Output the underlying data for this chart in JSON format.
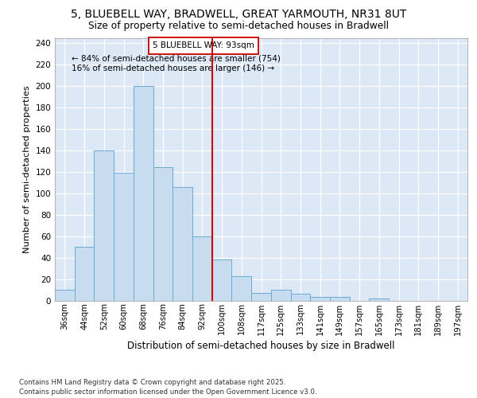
{
  "title_line1": "5, BLUEBELL WAY, BRADWELL, GREAT YARMOUTH, NR31 8UT",
  "title_line2": "Size of property relative to semi-detached houses in Bradwell",
  "xlabel": "Distribution of semi-detached houses by size in Bradwell",
  "ylabel": "Number of semi-detached properties",
  "categories": [
    "36sqm",
    "44sqm",
    "52sqm",
    "60sqm",
    "68sqm",
    "76sqm",
    "84sqm",
    "92sqm",
    "100sqm",
    "108sqm",
    "117sqm",
    "125sqm",
    "133sqm",
    "141sqm",
    "149sqm",
    "157sqm",
    "165sqm",
    "173sqm",
    "181sqm",
    "189sqm",
    "197sqm"
  ],
  "values": [
    10,
    50,
    140,
    119,
    200,
    124,
    106,
    60,
    38,
    23,
    7,
    10,
    6,
    3,
    3,
    0,
    2,
    0,
    0,
    0,
    0
  ],
  "bar_color": "#c8dcf0",
  "bar_edge_color": "#6aaad4",
  "vline_x": 7.5,
  "vline_color": "#cc0000",
  "annotation_title": "5 BLUEBELL WAY: 93sqm",
  "annotation_line1": "← 84% of semi-detached houses are smaller (754)",
  "annotation_line2": "16% of semi-detached houses are larger (146) →",
  "annotation_box_color": "#ffffff",
  "annotation_box_edge": "#cc0000",
  "ylim": [
    0,
    245
  ],
  "yticks": [
    0,
    20,
    40,
    60,
    80,
    100,
    120,
    140,
    160,
    180,
    200,
    220,
    240
  ],
  "background_color": "#dce8f5",
  "grid_color": "#ffffff",
  "fig_background": "#ffffff",
  "footer_line1": "Contains HM Land Registry data © Crown copyright and database right 2025.",
  "footer_line2": "Contains public sector information licensed under the Open Government Licence v3.0."
}
